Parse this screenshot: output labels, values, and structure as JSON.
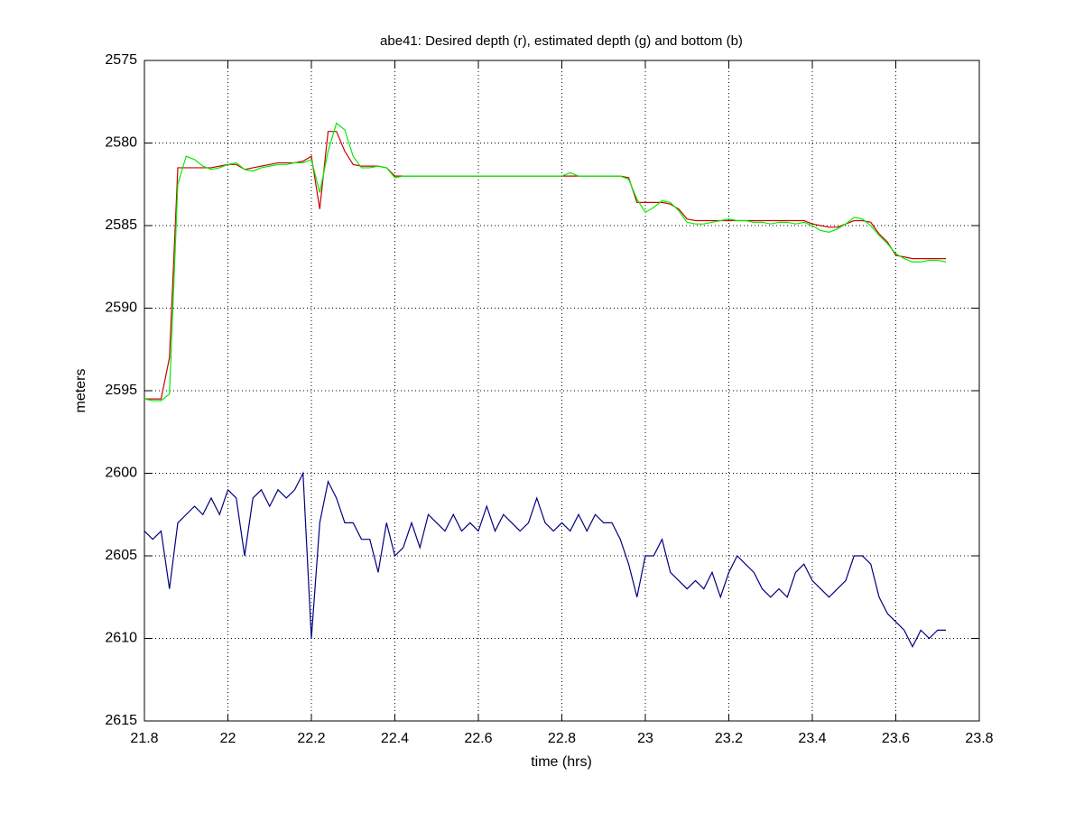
{
  "chart_data": {
    "type": "line",
    "title": "abe41: Desired depth (r), estimated depth (g) and bottom (b)",
    "x_label": "time (hrs)",
    "y_label": "meters",
    "xlim": [
      21.8,
      23.8
    ],
    "xticks": [
      21.8,
      22,
      22.2,
      22.4,
      22.6,
      22.8,
      23,
      23.2,
      23.4,
      23.6,
      23.8
    ],
    "ylim": [
      2575,
      2615
    ],
    "yticks": [
      2575,
      2580,
      2585,
      2590,
      2595,
      2600,
      2605,
      2610,
      2615
    ],
    "y_inverted": true,
    "grid": true,
    "x": [
      21.8,
      21.82,
      21.84,
      21.86,
      21.88,
      21.9,
      21.92,
      21.94,
      21.96,
      21.98,
      22,
      22.02,
      22.04,
      22.06,
      22.08,
      22.1,
      22.12,
      22.14,
      22.16,
      22.18,
      22.2,
      22.22,
      22.24,
      22.26,
      22.28,
      22.3,
      22.32,
      22.34,
      22.36,
      22.38,
      22.4,
      22.42,
      22.44,
      22.46,
      22.48,
      22.5,
      22.52,
      22.54,
      22.56,
      22.58,
      22.6,
      22.62,
      22.64,
      22.66,
      22.68,
      22.7,
      22.72,
      22.74,
      22.76,
      22.78,
      22.8,
      22.82,
      22.84,
      22.86,
      22.88,
      22.9,
      22.92,
      22.94,
      22.96,
      22.98,
      23,
      23.02,
      23.04,
      23.06,
      23.08,
      23.1,
      23.12,
      23.14,
      23.16,
      23.18,
      23.2,
      23.22,
      23.24,
      23.26,
      23.28,
      23.3,
      23.32,
      23.34,
      23.36,
      23.38,
      23.4,
      23.42,
      23.44,
      23.46,
      23.48,
      23.5,
      23.52,
      23.54,
      23.56,
      23.58,
      23.6,
      23.62,
      23.64,
      23.66,
      23.68,
      23.7,
      23.72
    ],
    "series": [
      {
        "color": "#cc0000",
        "values": [
          2595.5,
          2595.5,
          2595.5,
          2593.0,
          2581.5,
          2581.5,
          2581.5,
          2581.5,
          2581.5,
          2581.4,
          2581.3,
          2581.3,
          2581.6,
          2581.5,
          2581.4,
          2581.3,
          2581.2,
          2581.2,
          2581.2,
          2581.1,
          2580.8,
          2584.0,
          2579.3,
          2579.3,
          2580.5,
          2581.3,
          2581.4,
          2581.4,
          2581.4,
          2581.5,
          2582.0,
          2582.0,
          2582.0,
          2582.0,
          2582.0,
          2582.0,
          2582.0,
          2582.0,
          2582.0,
          2582.0,
          2582.0,
          2582.0,
          2582.0,
          2582.0,
          2582.0,
          2582.0,
          2582.0,
          2582.0,
          2582.0,
          2582.0,
          2582.0,
          2582.0,
          2582.0,
          2582.0,
          2582.0,
          2582.0,
          2582.0,
          2582.0,
          2582.1,
          2583.6,
          2583.6,
          2583.6,
          2583.6,
          2583.7,
          2584.0,
          2584.6,
          2584.7,
          2584.7,
          2584.7,
          2584.7,
          2584.7,
          2584.7,
          2584.7,
          2584.7,
          2584.7,
          2584.7,
          2584.7,
          2584.7,
          2584.7,
          2584.7,
          2584.9,
          2585.0,
          2585.1,
          2585.1,
          2584.9,
          2584.7,
          2584.7,
          2584.8,
          2585.5,
          2586.0,
          2586.8,
          2586.9,
          2587.0,
          2587.0,
          2587.0,
          2587.0,
          2587.0
        ]
      },
      {
        "color": "#00ee00",
        "values": [
          2595.5,
          2595.6,
          2595.6,
          2595.2,
          2582.5,
          2580.8,
          2581.0,
          2581.4,
          2581.6,
          2581.5,
          2581.3,
          2581.2,
          2581.6,
          2581.7,
          2581.5,
          2581.4,
          2581.3,
          2581.3,
          2581.2,
          2581.2,
          2581.0,
          2583.0,
          2580.5,
          2578.8,
          2579.2,
          2580.8,
          2581.5,
          2581.5,
          2581.4,
          2581.5,
          2582.1,
          2582.0,
          2582.0,
          2582.0,
          2582.0,
          2582.0,
          2582.0,
          2582.0,
          2582.0,
          2582.0,
          2582.0,
          2582.0,
          2582.0,
          2582.0,
          2582.0,
          2582.0,
          2582.0,
          2582.0,
          2582.0,
          2582.0,
          2582.0,
          2581.8,
          2582.0,
          2582.0,
          2582.0,
          2582.0,
          2582.0,
          2582.0,
          2582.2,
          2583.4,
          2584.2,
          2583.9,
          2583.5,
          2583.6,
          2584.1,
          2584.8,
          2584.9,
          2584.9,
          2584.8,
          2584.7,
          2584.6,
          2584.7,
          2584.7,
          2584.8,
          2584.8,
          2584.9,
          2584.8,
          2584.8,
          2584.9,
          2584.8,
          2585.0,
          2585.3,
          2585.4,
          2585.2,
          2584.9,
          2584.5,
          2584.6,
          2585.0,
          2585.6,
          2586.1,
          2586.7,
          2587.0,
          2587.2,
          2587.2,
          2587.1,
          2587.1,
          2587.2
        ]
      },
      {
        "color": "#000080",
        "values": [
          2603.5,
          2604,
          2603.5,
          2607,
          2603,
          2602.5,
          2602,
          2602.5,
          2601.5,
          2602.5,
          2601,
          2601.5,
          2605,
          2601.5,
          2601,
          2602,
          2601,
          2601.5,
          2601,
          2600,
          2610,
          2603,
          2600.5,
          2601.5,
          2603,
          2603,
          2604,
          2604,
          2606,
          2603,
          2605,
          2604.5,
          2603,
          2604.5,
          2602.5,
          2603,
          2603.5,
          2602.5,
          2603.5,
          2603,
          2603.5,
          2602,
          2603.5,
          2602.5,
          2603,
          2603.5,
          2603,
          2601.5,
          2603,
          2603.5,
          2603,
          2603.5,
          2602.5,
          2603.5,
          2602.5,
          2603,
          2603,
          2604,
          2605.5,
          2607.5,
          2605,
          2605,
          2604,
          2606,
          2606.5,
          2607,
          2606.5,
          2607,
          2606,
          2607.5,
          2606,
          2605,
          2605.5,
          2606,
          2607,
          2607.5,
          2607,
          2607.5,
          2606,
          2605.5,
          2606.5,
          2607,
          2607.5,
          2607,
          2606.5,
          2605,
          2605,
          2605.5,
          2607.5,
          2608.5,
          2609,
          2609.5,
          2610.5,
          2609.5,
          2610,
          2609.5,
          2609.5
        ]
      }
    ]
  }
}
